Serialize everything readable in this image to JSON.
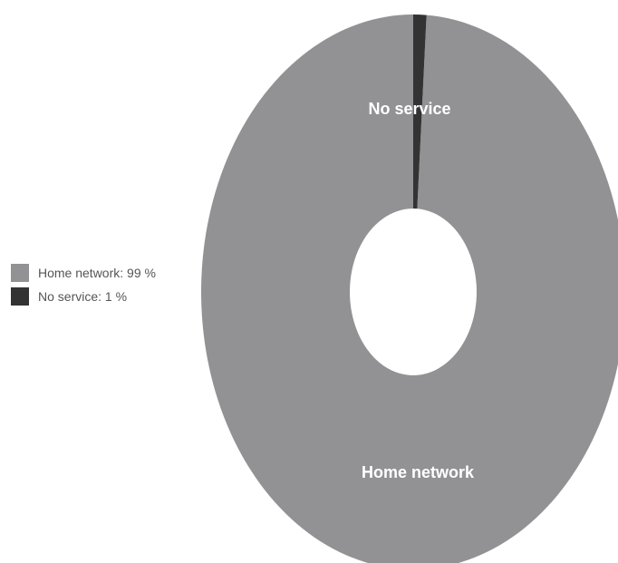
{
  "chart_data": {
    "type": "pie",
    "style": "donut",
    "categories": [
      "Home network",
      "No service"
    ],
    "values": [
      99,
      1
    ],
    "colors": [
      "#929294",
      "#333333"
    ],
    "slice_labels": [
      "Home network",
      "No service"
    ],
    "legend": [
      {
        "label": "Home network: 99 %",
        "color": "#929294"
      },
      {
        "label": "No service: 1 %",
        "color": "#333333"
      }
    ],
    "legend_position": "left",
    "title": ""
  }
}
